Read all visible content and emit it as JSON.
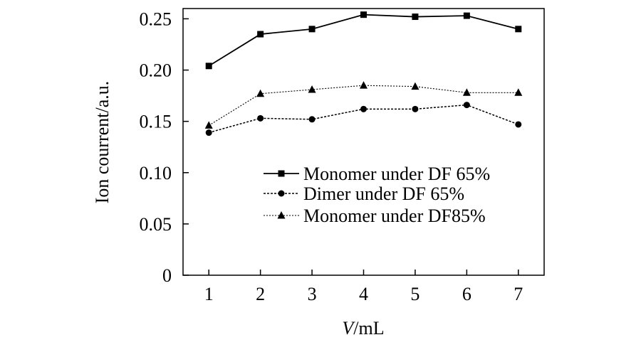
{
  "chart_data": {
    "type": "line",
    "xlabel_italic": "V",
    "xlabel_rest": "/mL",
    "ylabel": "Ion courrent/a.u.",
    "x": [
      1,
      2,
      3,
      4,
      5,
      6,
      7
    ],
    "xlim": [
      0.5,
      7.5
    ],
    "ylim": [
      0,
      0.26
    ],
    "xticks": [
      "1",
      "2",
      "3",
      "4",
      "5",
      "6",
      "7"
    ],
    "yticks": [
      {
        "value": 0,
        "label": "0"
      },
      {
        "value": 0.05,
        "label": "0.05"
      },
      {
        "value": 0.1,
        "label": "0.10"
      },
      {
        "value": 0.15,
        "label": "0.15"
      },
      {
        "value": 0.2,
        "label": "0.20"
      },
      {
        "value": 0.25,
        "label": "0.25"
      }
    ],
    "grid": false,
    "legend_position": "right",
    "series": [
      {
        "name": "Monomer under DF 65%",
        "marker": "square",
        "line_style": "solid",
        "values": [
          0.204,
          0.235,
          0.24,
          0.254,
          0.252,
          0.253,
          0.24
        ]
      },
      {
        "name": "Dimer under DF 65%",
        "marker": "circle",
        "line_style": "dotted",
        "values": [
          0.139,
          0.153,
          0.152,
          0.162,
          0.162,
          0.166,
          0.147
        ]
      },
      {
        "name": "Monomer under DF85%",
        "marker": "triangle",
        "line_style": "fine-dotted",
        "values": [
          0.146,
          0.177,
          0.181,
          0.185,
          0.184,
          0.178,
          0.178
        ]
      }
    ]
  }
}
